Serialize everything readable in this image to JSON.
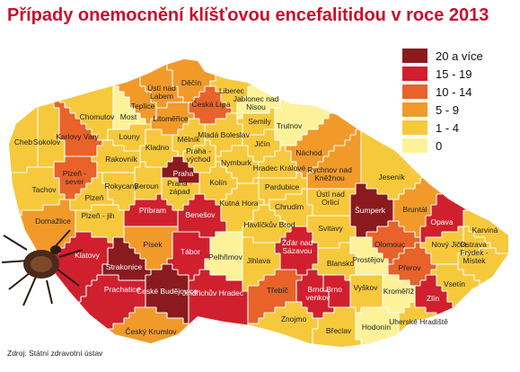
{
  "title": "Případy onemocnění klíšťovou encefalitidou v roce 2013",
  "source": "Zdroj: Státní zdravotní ústav",
  "legend": [
    {
      "label": "20 a více",
      "color": "#8b1a1f"
    },
    {
      "label": "15 - 19",
      "color": "#d0202f"
    },
    {
      "label": "10 - 14",
      "color": "#e8622a"
    },
    {
      "label": "5 - 9",
      "color": "#f19a2a"
    },
    {
      "label": "1 - 4",
      "color": "#f6c93c"
    },
    {
      "label": "0",
      "color": "#fdf29a"
    }
  ],
  "districts": [
    {
      "name": "Děčín",
      "cat": 3
    },
    {
      "name": "Ústí nad Labem",
      "cat": 3
    },
    {
      "name": "Teplice",
      "cat": 3
    },
    {
      "name": "Česká Lípa",
      "cat": 2
    },
    {
      "name": "Liberec",
      "cat": 4
    },
    {
      "name": "Jablonec nad Nisou",
      "cat": 5
    },
    {
      "name": "Semily",
      "cat": 4
    },
    {
      "name": "Trutnov",
      "cat": 5
    },
    {
      "name": "Chomutov",
      "cat": 4
    },
    {
      "name": "Most",
      "cat": 5
    },
    {
      "name": "Litoměřice",
      "cat": 3
    },
    {
      "name": "Mladá Boleslav",
      "cat": 4
    },
    {
      "name": "Jičín",
      "cat": 4
    },
    {
      "name": "Náchod",
      "cat": 3
    },
    {
      "name": "Cheb",
      "cat": 4
    },
    {
      "name": "Sokolov",
      "cat": 4
    },
    {
      "name": "Karlovy Vary",
      "cat": 2
    },
    {
      "name": "Louny",
      "cat": 4
    },
    {
      "name": "Kladno",
      "cat": 4
    },
    {
      "name": "Mělník",
      "cat": 4
    },
    {
      "name": "Praha - východ",
      "cat": 4
    },
    {
      "name": "Hradec Králové",
      "cat": 4
    },
    {
      "name": "Rychnov nad Kněžnou",
      "cat": 3
    },
    {
      "name": "Nymburk",
      "cat": 4
    },
    {
      "name": "Rakovník",
      "cat": 4
    },
    {
      "name": "Plzeň - sever",
      "cat": 2
    },
    {
      "name": "Praha",
      "cat": 0
    },
    {
      "name": "Jeseník",
      "cat": 4
    },
    {
      "name": "Tachov",
      "cat": 4
    },
    {
      "name": "Plzeň",
      "cat": 4
    },
    {
      "name": "Rokycany",
      "cat": 4
    },
    {
      "name": "Beroun",
      "cat": 4
    },
    {
      "name": "Praha - západ",
      "cat": 4
    },
    {
      "name": "Kolín",
      "cat": 4
    },
    {
      "name": "Pardubice",
      "cat": 4
    },
    {
      "name": "Ústí nad Orlicí",
      "cat": 4
    },
    {
      "name": "Šumperk",
      "cat": 0
    },
    {
      "name": "Bruntál",
      "cat": 3
    },
    {
      "name": "Domažlice",
      "cat": 3
    },
    {
      "name": "Plzeň - jih",
      "cat": 4
    },
    {
      "name": "Příbram",
      "cat": 1
    },
    {
      "name": "Benešov",
      "cat": 1
    },
    {
      "name": "Kutná Hora",
      "cat": 4
    },
    {
      "name": "Chrudim",
      "cat": 4
    },
    {
      "name": "Havlíčkův Brod",
      "cat": 4
    },
    {
      "name": "Svitavy",
      "cat": 4
    },
    {
      "name": "Opava",
      "cat": 1
    },
    {
      "name": "Karviná",
      "cat": 4
    },
    {
      "name": "Klatovy",
      "cat": 1
    },
    {
      "name": "Písek",
      "cat": 3
    },
    {
      "name": "Tábor",
      "cat": 1
    },
    {
      "name": "Pelhřimov",
      "cat": 5
    },
    {
      "name": "Jihlava",
      "cat": 4
    },
    {
      "name": "Žďár nad Sázavou",
      "cat": 1
    },
    {
      "name": "Blansko",
      "cat": 4
    },
    {
      "name": "Olomouc",
      "cat": 2
    },
    {
      "name": "Nový Jičín",
      "cat": 4
    },
    {
      "name": "Ostrava",
      "cat": 4
    },
    {
      "name": "Frýdek - Místek",
      "cat": 4
    },
    {
      "name": "Prostějov",
      "cat": 5
    },
    {
      "name": "Přerov",
      "cat": 2
    },
    {
      "name": "Strakonice",
      "cat": 0
    },
    {
      "name": "Prachatice",
      "cat": 1
    },
    {
      "name": "České Budějovice",
      "cat": 0
    },
    {
      "name": "Jindřichův Hradec",
      "cat": 1
    },
    {
      "name": "Třebíč",
      "cat": 2
    },
    {
      "name": "Brno - venkov",
      "cat": 1
    },
    {
      "name": "Brno",
      "cat": 1
    },
    {
      "name": "Vyškov",
      "cat": 4
    },
    {
      "name": "Kroměříž",
      "cat": 5
    },
    {
      "name": "Zlín",
      "cat": 1
    },
    {
      "name": "Vsetín",
      "cat": 4
    },
    {
      "name": "Český Krumlov",
      "cat": 3
    },
    {
      "name": "Znojmo",
      "cat": 4
    },
    {
      "name": "Břeclav",
      "cat": 4
    },
    {
      "name": "Hodonín",
      "cat": 5
    },
    {
      "name": "Uherské Hradiště",
      "cat": 4
    }
  ]
}
